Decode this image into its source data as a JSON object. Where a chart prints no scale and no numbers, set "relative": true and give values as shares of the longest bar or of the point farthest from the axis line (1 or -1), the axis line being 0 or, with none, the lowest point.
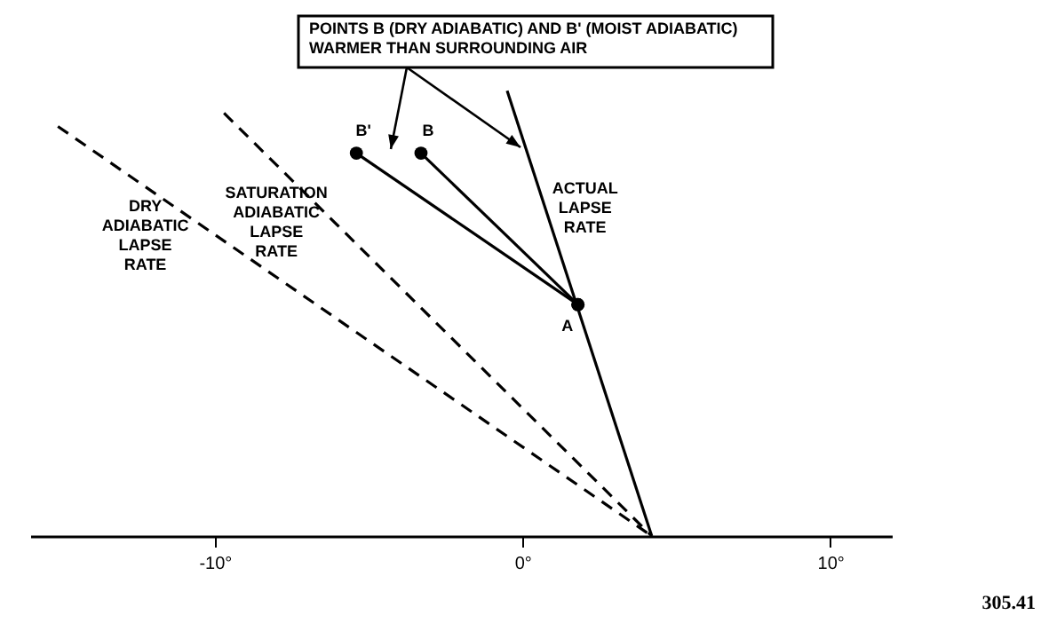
{
  "chart_data": {
    "type": "line",
    "relative": true,
    "xlim": [
      -16,
      12
    ],
    "xticks": [
      {
        "value": -10,
        "label": "-10°"
      },
      {
        "value": 0,
        "label": "0°"
      },
      {
        "value": 10,
        "label": "10°"
      }
    ],
    "grid": false,
    "tick_labels": "x",
    "series": [
      {
        "name": "DRY ADIABATIC LAPSE RATE",
        "color": "#000000",
        "line_style": "dashed",
        "x": [
          -15.1,
          4.2
        ],
        "values": [
          0.92,
          0
        ]
      },
      {
        "name": "SATURATION ADIABATIC LAPSE RATE",
        "color": "#000000",
        "line_style": "dashed",
        "x": [
          -9.7,
          4.2
        ],
        "values": [
          0.95,
          0
        ]
      },
      {
        "name": "ACTUAL LAPSE RATE",
        "color": "#000000",
        "line_style": "solid",
        "x": [
          -0.5,
          4.2
        ],
        "values": [
          1,
          0
        ]
      },
      {
        "color": "#000000",
        "line_style": "solid",
        "marker": "circle",
        "x": [
          1.8,
          -3.3
        ],
        "values": [
          0.52,
          0.86
        ]
      },
      {
        "color": "#000000",
        "line_style": "solid",
        "marker": "circle",
        "x": [
          1.8,
          -5.4
        ],
        "values": [
          0.52,
          0.86
        ]
      }
    ],
    "annotations": [
      "POINTS B (DRY ADIABATIC) AND B' (MOIST ADIABATIC)\nWARMER THAN SURROUNDING AIR",
      "305.41",
      {
        "text": "B'",
        "x": -5.4,
        "y": 0.86
      },
      {
        "text": "B",
        "x": -3.3,
        "y": 0.86
      },
      {
        "text": "A",
        "x": 1.8,
        "y": 0.52
      }
    ]
  }
}
